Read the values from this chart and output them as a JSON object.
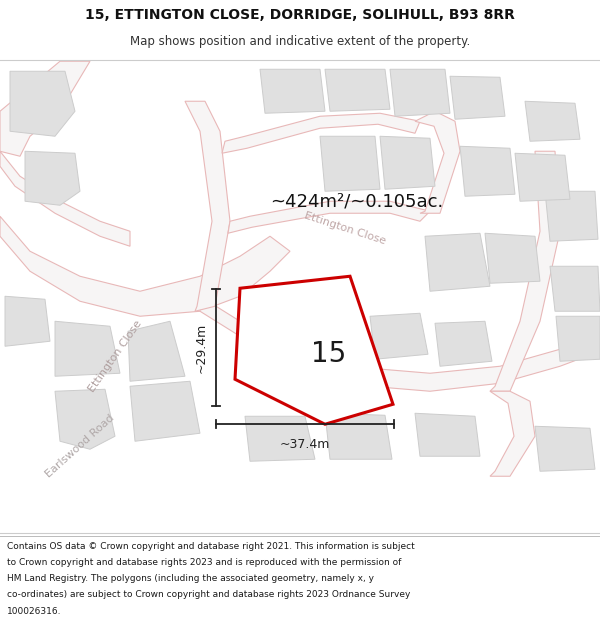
{
  "title_line1": "15, ETTINGTON CLOSE, DORRIDGE, SOLIHULL, B93 8RR",
  "title_line2": "Map shows position and indicative extent of the property.",
  "area_text": "~424m²/~0.105ac.",
  "number_label": "15",
  "dim_vertical": "~29.4m",
  "dim_horizontal": "~37.4m",
  "footer_lines": [
    "Contains OS data © Crown copyright and database right 2021. This information is subject",
    "to Crown copyright and database rights 2023 and is reproduced with the permission of",
    "HM Land Registry. The polygons (including the associated geometry, namely x, y",
    "co-ordinates) are subject to Crown copyright and database rights 2023 Ordnance Survey",
    "100026316."
  ],
  "map_bg": "#f7f5f5",
  "road_fill": "#f7f5f5",
  "road_edge": "#e8b8b8",
  "block_fill": "#e0e0e0",
  "block_edge": "#cccccc",
  "plot_edge": "#cc0000",
  "plot_fill": "#ffffff",
  "white": "#ffffff",
  "label_road": "#aaaaaa",
  "dim_color": "#222222",
  "text_dark": "#111111"
}
